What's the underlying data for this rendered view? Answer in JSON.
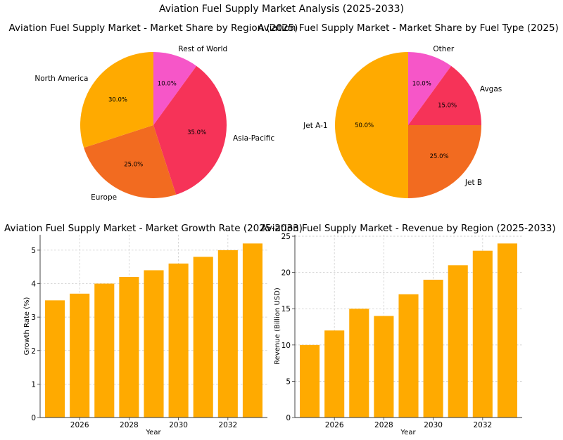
{
  "figure_title": "Aviation Fuel Supply Market Analysis (2025-2033)",
  "chart_data": [
    {
      "type": "pie",
      "title": "Aviation Fuel Supply Market - Market Share by Region (2025)",
      "labels": [
        "Rest of World",
        "Asia-Pacific",
        "Europe",
        "North America"
      ],
      "values": [
        10.0,
        35.0,
        25.0,
        30.0
      ],
      "value_labels": [
        "10.0%",
        "35.0%",
        "25.0%",
        "30.0%"
      ],
      "colors": [
        "#F656C8",
        "#F63358",
        "#F26B20",
        "#FFAA00"
      ],
      "start_angle_deg": 90,
      "direction": "clockwise"
    },
    {
      "type": "pie",
      "title": "Aviation Fuel Supply Market - Market Share by Fuel Type (2025)",
      "labels": [
        "Other",
        "Avgas",
        "Jet B",
        "Jet A-1"
      ],
      "values": [
        10.0,
        15.0,
        25.0,
        50.0
      ],
      "value_labels": [
        "10.0%",
        "15.0%",
        "25.0%",
        "50.0%"
      ],
      "colors": [
        "#F656C8",
        "#F63358",
        "#F26B20",
        "#FFAA00"
      ],
      "start_angle_deg": 90,
      "direction": "clockwise"
    },
    {
      "type": "bar",
      "title": "Aviation Fuel Supply Market - Market Growth Rate (2025-2033)",
      "xlabel": "Year",
      "ylabel": "Growth Rate (%)",
      "categories": [
        2025,
        2026,
        2027,
        2028,
        2029,
        2030,
        2031,
        2032,
        2033
      ],
      "values": [
        3.5,
        3.7,
        4.0,
        4.2,
        4.4,
        4.6,
        4.8,
        5.0,
        5.2
      ],
      "xticks": [
        "2026",
        "2028",
        "2030",
        "2032"
      ],
      "xtick_values": [
        2026,
        2028,
        2030,
        2032
      ],
      "yticks": [
        "0",
        "1",
        "2",
        "3",
        "4",
        "5"
      ],
      "ytick_values": [
        0,
        1,
        2,
        3,
        4,
        5
      ],
      "xlim": [
        2024.4,
        2033.6
      ],
      "ylim": [
        0,
        5.46
      ],
      "grid": true,
      "color": "#FFAA00"
    },
    {
      "type": "bar",
      "title": "Aviation Fuel Supply Market - Revenue by Region (2025-2033)",
      "xlabel": "Year",
      "ylabel": "Revenue (Billion USD)",
      "categories": [
        2025,
        2026,
        2027,
        2028,
        2029,
        2030,
        2031,
        2032,
        2033
      ],
      "values": [
        10,
        12,
        15,
        14,
        17,
        19,
        21,
        23,
        24
      ],
      "xticks": [
        "2026",
        "2028",
        "2030",
        "2032"
      ],
      "xtick_values": [
        2026,
        2028,
        2030,
        2032
      ],
      "yticks": [
        "0",
        "5",
        "10",
        "15",
        "20",
        "25"
      ],
      "ytick_values": [
        0,
        5,
        10,
        15,
        20,
        25
      ],
      "xlim": [
        2024.4,
        2033.6
      ],
      "ylim": [
        0,
        25.2
      ],
      "grid": true,
      "color": "#FFAA00"
    }
  ]
}
